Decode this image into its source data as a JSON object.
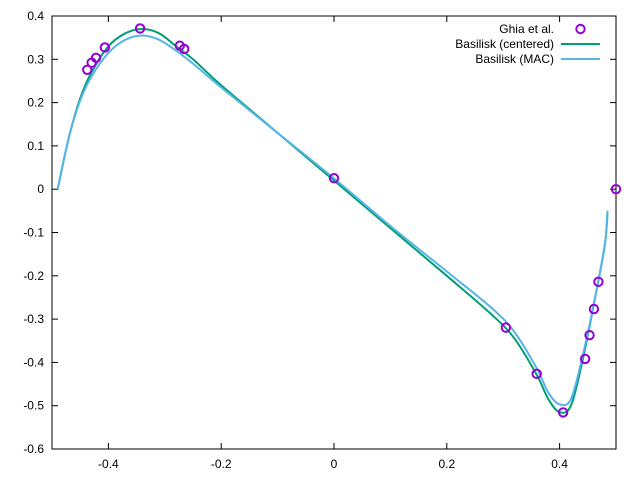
{
  "chart_data": {
    "type": "line",
    "xlim": [
      -0.5,
      0.5
    ],
    "ylim": [
      -0.6,
      0.4
    ],
    "x_ticks": [
      -0.4,
      -0.2,
      0,
      0.2,
      0.4
    ],
    "x_tick_labels": [
      "-0.4",
      "-0.2",
      "0",
      "0.2",
      "0.4"
    ],
    "y_ticks": [
      0.4,
      0.3,
      0.2,
      0.1,
      0,
      -0.1,
      -0.2,
      -0.3,
      -0.4,
      -0.5,
      -0.6
    ],
    "y_tick_labels": [
      "0.4",
      "0.3",
      "0.2",
      "0.1",
      "0",
      "-0.1",
      "-0.2",
      "-0.3",
      "-0.4",
      "-0.5",
      "-0.6"
    ],
    "grid": false,
    "legend_position": "top-right",
    "series": [
      {
        "name": "Ghia et al.",
        "type": "scatter",
        "marker": "circle",
        "color": "#9400d3",
        "x": [
          -0.4375,
          -0.4297,
          -0.4219,
          -0.4063,
          -0.3438,
          -0.2734,
          -0.2656,
          0.0,
          0.3047,
          0.3594,
          0.4063,
          0.4453,
          0.4531,
          0.4609,
          0.4688,
          0.5
        ],
        "y": [
          0.2758,
          0.2922,
          0.3035,
          0.3273,
          0.3713,
          0.3313,
          0.3239,
          0.0253,
          -0.3197,
          -0.4264,
          -0.5155,
          -0.3919,
          -0.3371,
          -0.2767,
          -0.2139,
          0.0
        ]
      },
      {
        "name": "Basilisk (centered)",
        "type": "line",
        "color": "#009e73",
        "x": [
          -0.49,
          -0.47,
          -0.45,
          -0.43,
          -0.4,
          -0.37,
          -0.34,
          -0.31,
          -0.28,
          -0.25,
          -0.2,
          -0.1,
          0.0,
          0.1,
          0.2,
          0.28,
          0.32,
          0.36,
          0.38,
          0.4,
          0.42,
          0.44,
          0.46,
          0.48,
          0.485
        ],
        "y": [
          0.0,
          0.12,
          0.21,
          0.27,
          0.33,
          0.36,
          0.37,
          0.36,
          0.33,
          0.3,
          0.24,
          0.13,
          0.02,
          -0.09,
          -0.2,
          -0.29,
          -0.345,
          -0.43,
          -0.485,
          -0.515,
          -0.5,
          -0.4,
          -0.27,
          -0.13,
          -0.05
        ]
      },
      {
        "name": "Basilisk (MAC)",
        "type": "line",
        "color": "#56b4e9",
        "x": [
          -0.49,
          -0.47,
          -0.45,
          -0.43,
          -0.4,
          -0.37,
          -0.34,
          -0.31,
          -0.28,
          -0.25,
          -0.2,
          -0.1,
          0.0,
          0.1,
          0.2,
          0.28,
          0.32,
          0.36,
          0.38,
          0.4,
          0.42,
          0.44,
          0.46,
          0.48,
          0.485
        ],
        "y": [
          0.0,
          0.12,
          0.205,
          0.26,
          0.315,
          0.345,
          0.355,
          0.345,
          0.32,
          0.29,
          0.235,
          0.13,
          0.025,
          -0.085,
          -0.19,
          -0.275,
          -0.33,
          -0.415,
          -0.47,
          -0.497,
          -0.485,
          -0.39,
          -0.27,
          -0.13,
          -0.05
        ]
      }
    ]
  }
}
